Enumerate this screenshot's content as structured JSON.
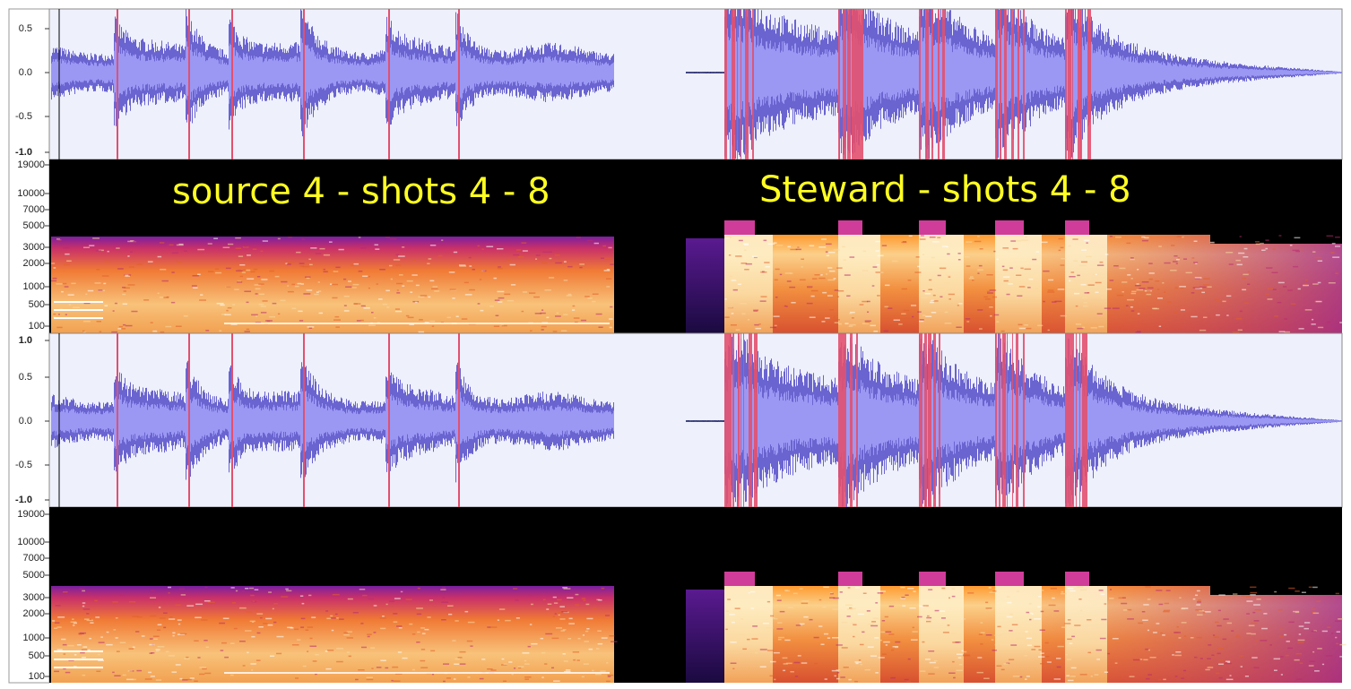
{
  "tracks": [
    {
      "kind": "waveform",
      "ticks": [
        "0.5",
        "0.0",
        "-0.5",
        "-1.0"
      ]
    },
    {
      "kind": "spectrogram",
      "ticks": [
        "19000",
        "10000",
        "7000",
        "5000",
        "3000",
        "2000",
        "1000",
        "500",
        "100"
      ]
    },
    {
      "kind": "waveform",
      "ticks": [
        "1.0",
        "0.5",
        "0.0",
        "-0.5",
        "-1.0"
      ]
    },
    {
      "kind": "spectrogram",
      "ticks": [
        "19000",
        "10000",
        "7000",
        "5000",
        "3000",
        "2000",
        "1000",
        "500",
        "100"
      ]
    }
  ],
  "captions": [
    "source 4 - shots 4 - 8",
    "Steward - shots 4 - 8"
  ]
}
